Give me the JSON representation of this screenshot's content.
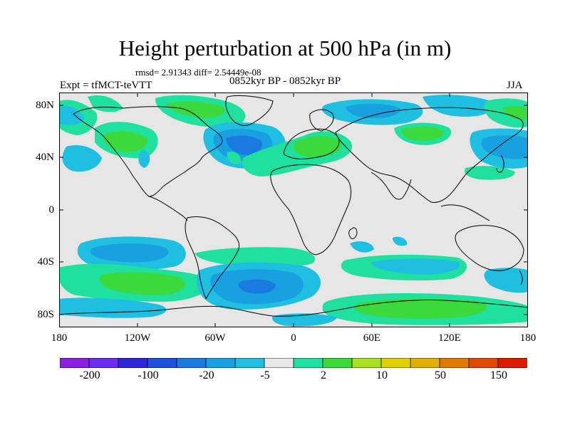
{
  "title": "Height perturbation at 500 hPa (in m)",
  "stats": "rmsd= 2.91343 diff= 2.54449e-08",
  "period": "0852kyr BP - 0852kyr BP",
  "experiment": "Expt = tfMCT-teVTT",
  "season": "JJA",
  "axes": {
    "lat_labels": [
      "80N",
      "40N",
      "0",
      "40S",
      "80S"
    ],
    "lon_labels": [
      "180",
      "120W",
      "60W",
      "0",
      "60E",
      "120E",
      "180"
    ]
  },
  "colorbar": {
    "colors": [
      "#8a1fe0",
      "#6a2df0",
      "#2c26d6",
      "#1e50e0",
      "#1a7ae0",
      "#18a0e0",
      "#1ebfe0",
      "#e6e6e6",
      "#20e0a0",
      "#3cd93c",
      "#a8e020",
      "#e0d000",
      "#e0b000",
      "#e07a00",
      "#e04a00",
      "#e01a00"
    ],
    "labels": [
      "-200",
      "-100",
      "-20",
      "-5",
      "2",
      "10",
      "50",
      "150"
    ]
  },
  "palette": {
    "ocean": "#e6e6e6",
    "light_blue": "#1ebfe0",
    "mid_blue": "#18a0e0",
    "blue": "#1a7ae0",
    "mint": "#20e0a0",
    "green": "#3cd93c"
  }
}
